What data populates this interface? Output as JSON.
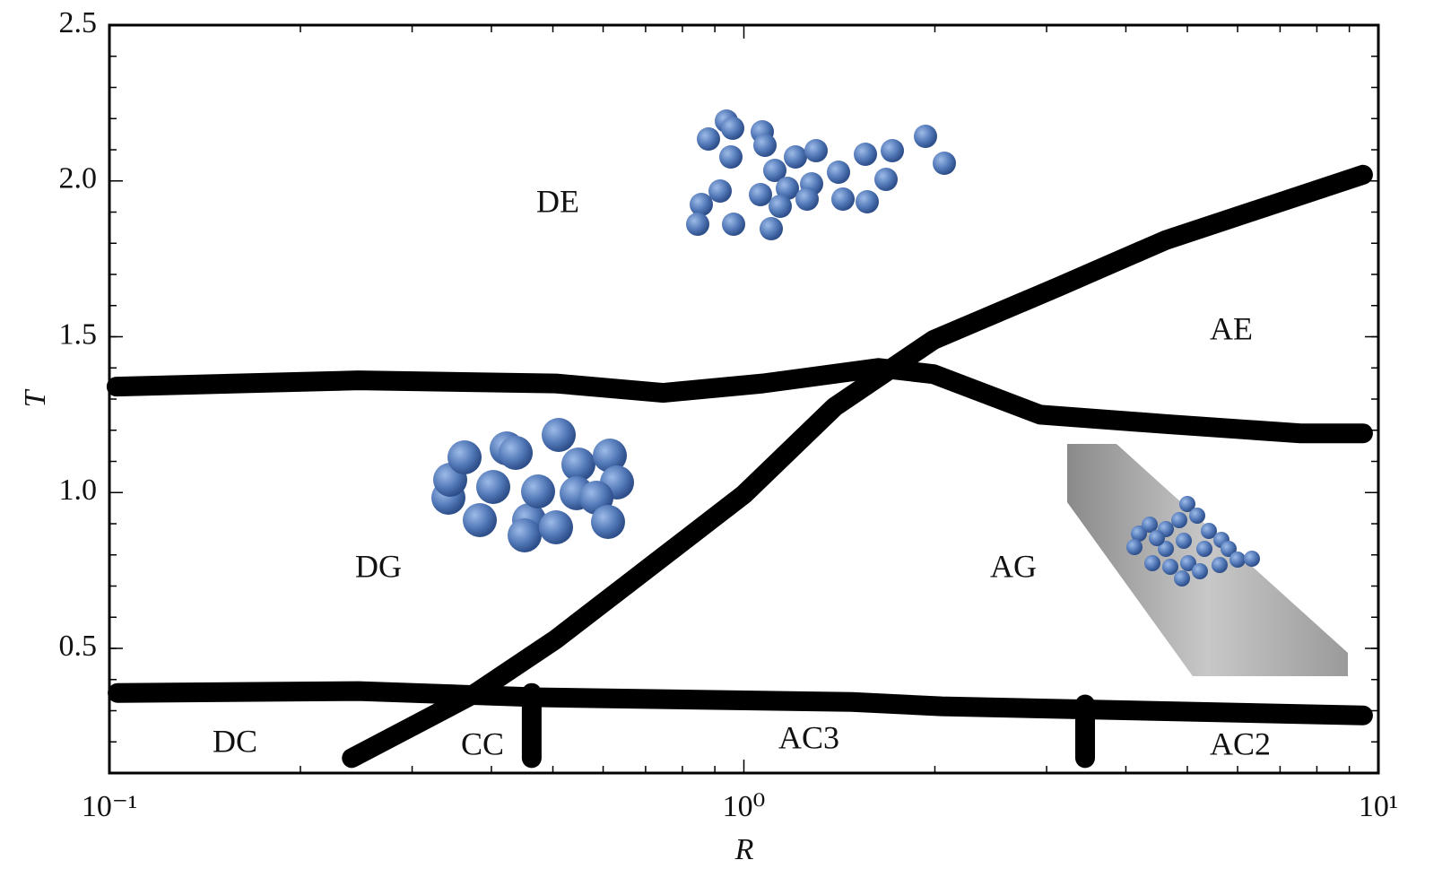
{
  "chart_data": {
    "type": "line",
    "xlabel": "R",
    "ylabel": "T",
    "xscale": "log",
    "xlim": [
      0.1,
      10
    ],
    "ylim": [
      0.1,
      2.5
    ],
    "xticks": [
      {
        "value": 0.1,
        "label": "10⁻¹"
      },
      {
        "value": 1,
        "label": "10⁰"
      },
      {
        "value": 10,
        "label": "10¹"
      }
    ],
    "yticks": [
      0.5,
      {
        "value": 1,
        "label": "1.0"
      },
      1.5,
      {
        "value": 2,
        "label": "2.0"
      },
      2.5
    ],
    "series": [
      {
        "color": "#000000",
        "x": [
          0.1026,
          0.247,
          0.506,
          0.746,
          1.07,
          1.63,
          1.99,
          2.93,
          4.62,
          7.54,
          9.46
        ],
        "values": [
          1.34,
          1.36,
          1.35,
          1.32,
          1.35,
          1.4,
          1.38,
          1.25,
          1.22,
          1.19,
          1.19
        ]
      },
      {
        "color": "#000000",
        "x": [
          0.241,
          0.378,
          0.506,
          0.723,
          1.0,
          1.39,
          1.99,
          3.13,
          4.62,
          9.46
        ],
        "values": [
          0.148,
          0.357,
          0.53,
          0.773,
          0.994,
          1.275,
          1.49,
          1.66,
          1.81,
          2.02
        ]
      },
      {
        "color": "#000000",
        "x": [
          0.103,
          0.247,
          0.474,
          1.48,
          2.05,
          9.46
        ],
        "values": [
          0.357,
          0.363,
          0.343,
          0.328,
          0.314,
          0.285
        ]
      },
      {
        "color": "#000000",
        "x": [
          0.463,
          0.463
        ],
        "values": [
          0.357,
          0.148
        ]
      },
      {
        "color": "#000000",
        "x": [
          3.45,
          3.45
        ],
        "values": [
          0.32,
          0.148
        ]
      }
    ],
    "annotations": [
      "DE",
      "DG",
      "AE",
      "AG",
      "DC",
      "CC",
      "AC3",
      "AC2"
    ]
  }
}
